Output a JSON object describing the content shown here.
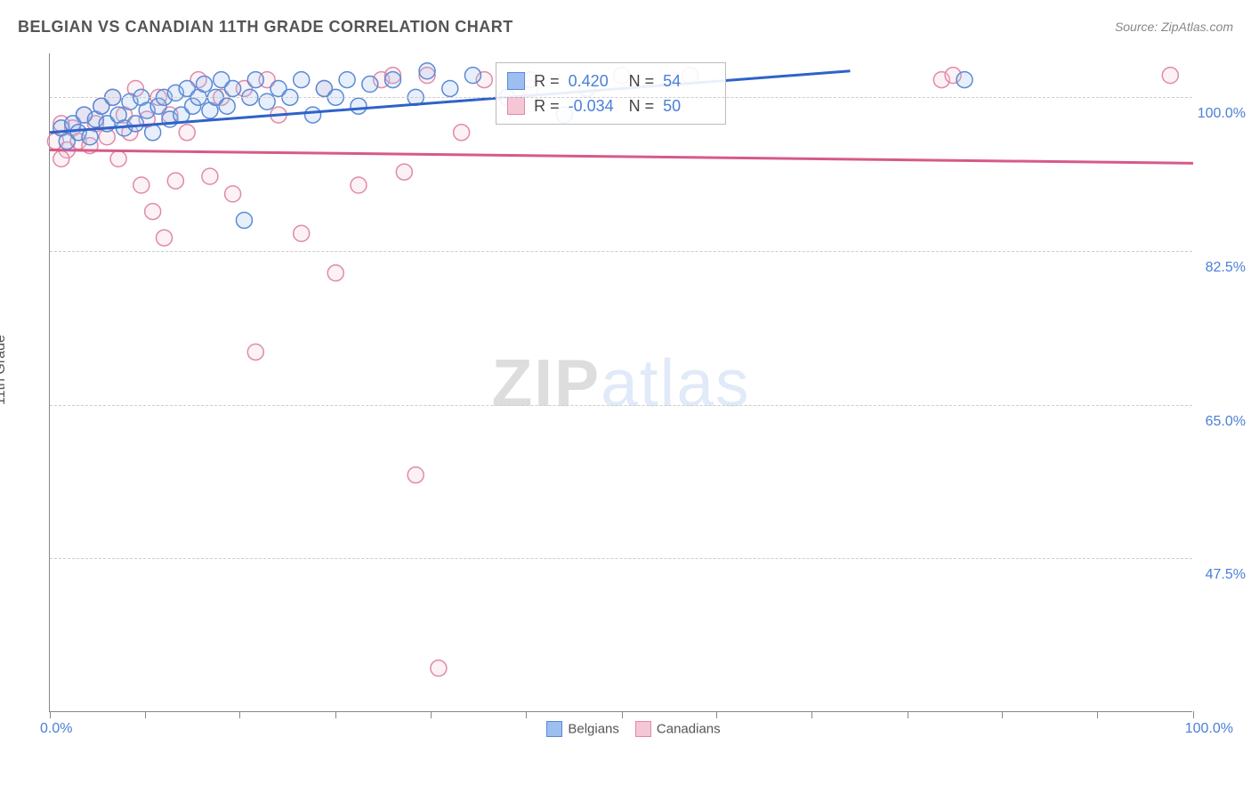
{
  "title": "BELGIAN VS CANADIAN 11TH GRADE CORRELATION CHART",
  "source_label": "Source: ZipAtlas.com",
  "y_axis_label": "11th Grade",
  "watermark": {
    "part1": "ZIP",
    "part2": "atlas"
  },
  "chart": {
    "type": "scatter",
    "background_color": "#ffffff",
    "grid_color": "#cccccc",
    "axis_color": "#888888",
    "text_color": "#555555",
    "value_color": "#4a7fd8",
    "xlim": [
      0,
      100
    ],
    "ylim": [
      30,
      105
    ],
    "y_ticks": [
      47.5,
      65.0,
      82.5,
      100.0
    ],
    "y_tick_labels": [
      "47.5%",
      "65.0%",
      "82.5%",
      "100.0%"
    ],
    "x_ticks": [
      0,
      8.3,
      16.6,
      25,
      33.3,
      41.6,
      50,
      58.3,
      66.6,
      75,
      83.3,
      91.6,
      100
    ],
    "x_min_label": "0.0%",
    "x_max_label": "100.0%",
    "marker_radius": 9,
    "marker_stroke_width": 1.5,
    "marker_fill_opacity": 0.25,
    "trend_line_width": 3
  },
  "series": {
    "belgians": {
      "label": "Belgians",
      "color_stroke": "#5b8ad6",
      "color_fill": "#9cbef0",
      "trend_color": "#2f62c9",
      "R": "0.420",
      "N": "54",
      "trend": {
        "x1": 0,
        "y1": 96.0,
        "x2": 70,
        "y2": 103.0
      },
      "points": [
        [
          1.0,
          96.5
        ],
        [
          1.5,
          95.0
        ],
        [
          2.0,
          97.0
        ],
        [
          2.5,
          96.0
        ],
        [
          3.0,
          98.0
        ],
        [
          3.5,
          95.5
        ],
        [
          4.0,
          97.5
        ],
        [
          4.5,
          99.0
        ],
        [
          5.0,
          97.0
        ],
        [
          5.5,
          100.0
        ],
        [
          6.0,
          98.0
        ],
        [
          6.5,
          96.5
        ],
        [
          7.0,
          99.5
        ],
        [
          7.5,
          97.0
        ],
        [
          8.0,
          100.0
        ],
        [
          8.5,
          98.5
        ],
        [
          9.0,
          96.0
        ],
        [
          9.5,
          99.0
        ],
        [
          10.0,
          100.0
        ],
        [
          10.5,
          97.5
        ],
        [
          11.0,
          100.5
        ],
        [
          11.5,
          98.0
        ],
        [
          12.0,
          101.0
        ],
        [
          12.5,
          99.0
        ],
        [
          13.0,
          100.0
        ],
        [
          13.5,
          101.5
        ],
        [
          14.0,
          98.5
        ],
        [
          14.5,
          100.0
        ],
        [
          15.0,
          102.0
        ],
        [
          15.5,
          99.0
        ],
        [
          16.0,
          101.0
        ],
        [
          17.0,
          86.0
        ],
        [
          17.5,
          100.0
        ],
        [
          18.0,
          102.0
        ],
        [
          19.0,
          99.5
        ],
        [
          20.0,
          101.0
        ],
        [
          21.0,
          100.0
        ],
        [
          22.0,
          102.0
        ],
        [
          23.0,
          98.0
        ],
        [
          24.0,
          101.0
        ],
        [
          25.0,
          100.0
        ],
        [
          26.0,
          102.0
        ],
        [
          27.0,
          99.0
        ],
        [
          28.0,
          101.5
        ],
        [
          30.0,
          102.0
        ],
        [
          32.0,
          100.0
        ],
        [
          33.0,
          103.0
        ],
        [
          35.0,
          101.0
        ],
        [
          37.0,
          102.5
        ],
        [
          40.0,
          100.0
        ],
        [
          42.0,
          102.0
        ],
        [
          45.0,
          98.0
        ],
        [
          47.0,
          101.0
        ],
        [
          80.0,
          102.0
        ]
      ]
    },
    "canadians": {
      "label": "Canadians",
      "color_stroke": "#e08aa8",
      "color_fill": "#f5c6d6",
      "trend_color": "#d65a8a",
      "R": "-0.034",
      "N": "50",
      "trend": {
        "x1": 0,
        "y1": 94.0,
        "x2": 100,
        "y2": 92.5
      },
      "points": [
        [
          0.5,
          95.0
        ],
        [
          1.0,
          97.0
        ],
        [
          1.5,
          94.0
        ],
        [
          2.0,
          96.5
        ],
        [
          2.5,
          95.0
        ],
        [
          3.0,
          98.0
        ],
        [
          3.5,
          94.5
        ],
        [
          4.0,
          97.0
        ],
        [
          4.5,
          99.0
        ],
        [
          5.0,
          95.5
        ],
        [
          5.5,
          100.0
        ],
        [
          6.0,
          93.0
        ],
        [
          6.5,
          98.0
        ],
        [
          7.0,
          96.0
        ],
        [
          7.5,
          101.0
        ],
        [
          8.0,
          90.0
        ],
        [
          8.5,
          97.5
        ],
        [
          9.0,
          87.0
        ],
        [
          9.5,
          100.0
        ],
        [
          10.0,
          84.0
        ],
        [
          10.5,
          98.0
        ],
        [
          11.0,
          90.5
        ],
        [
          12.0,
          96.0
        ],
        [
          13.0,
          102.0
        ],
        [
          14.0,
          91.0
        ],
        [
          15.0,
          100.0
        ],
        [
          16.0,
          89.0
        ],
        [
          17.0,
          101.0
        ],
        [
          18.0,
          71.0
        ],
        [
          19.0,
          102.0
        ],
        [
          20.0,
          98.0
        ],
        [
          22.0,
          84.5
        ],
        [
          24.0,
          101.0
        ],
        [
          25.0,
          80.0
        ],
        [
          27.0,
          90.0
        ],
        [
          29.0,
          102.0
        ],
        [
          30.0,
          102.5
        ],
        [
          31.0,
          91.5
        ],
        [
          32.0,
          57.0
        ],
        [
          33.0,
          102.5
        ],
        [
          34.0,
          35.0
        ],
        [
          36.0,
          96.0
        ],
        [
          38.0,
          102.0
        ],
        [
          42.0,
          101.0
        ],
        [
          50.0,
          102.5
        ],
        [
          56.0,
          102.5
        ],
        [
          78.0,
          102.0
        ],
        [
          79.0,
          102.5
        ],
        [
          98.0,
          102.5
        ],
        [
          1.0,
          93.0
        ]
      ]
    }
  },
  "corr_legend": {
    "R_label": "R =",
    "N_label": "N ="
  },
  "bottom_legend": {
    "items": [
      "belgians",
      "canadians"
    ]
  }
}
